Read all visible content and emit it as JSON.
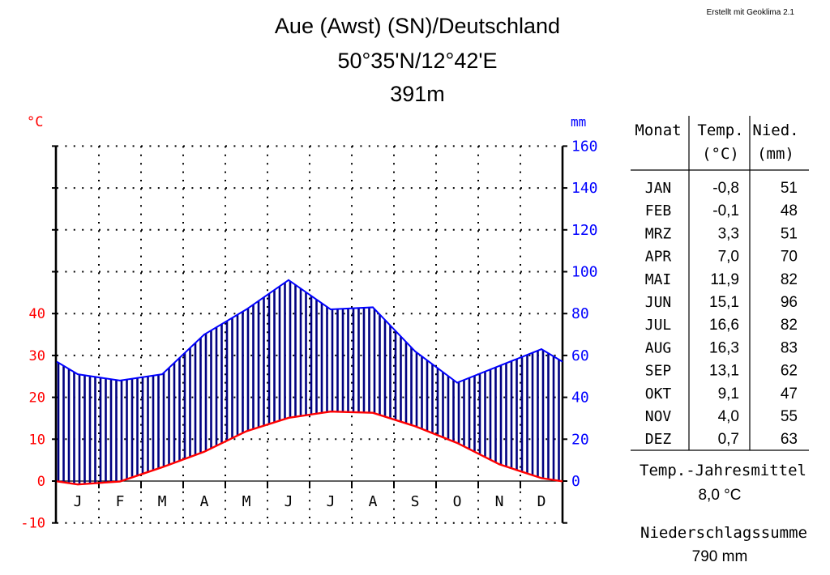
{
  "credit": "Erstellt mit Geoklima 2.1",
  "title_lines": [
    "Aue (Awst) (SN)/Deutschland",
    "50°35'N/12°42'E",
    "391m"
  ],
  "chart_data": {
    "type": "climate_diagram",
    "months": [
      "J",
      "F",
      "M",
      "A",
      "M",
      "J",
      "J",
      "A",
      "S",
      "O",
      "N",
      "D"
    ],
    "temperature": [
      -0.8,
      -0.1,
      3.3,
      7.0,
      11.9,
      15.1,
      16.6,
      16.3,
      13.1,
      9.1,
      4.0,
      0.7
    ],
    "precipitation": [
      51,
      48,
      51,
      70,
      82,
      96,
      82,
      83,
      62,
      47,
      55,
      63
    ],
    "left_axis": {
      "label": "°C",
      "ticks": [
        -10,
        0,
        10,
        20,
        30,
        40
      ],
      "range": [
        -10,
        80
      ]
    },
    "right_axis": {
      "label": "mm",
      "ticks": [
        0,
        20,
        40,
        60,
        80,
        100,
        120,
        140,
        160
      ],
      "range": [
        -20,
        160
      ]
    },
    "temp_color": "#ff0000",
    "precip_color": "#0000ff",
    "hatch_color": "#000080",
    "grid": "dotted"
  },
  "table": {
    "headers": [
      [
        "Monat",
        ""
      ],
      [
        "Temp.",
        "(°C)"
      ],
      [
        "Nied.",
        "(mm)"
      ]
    ],
    "rows": [
      [
        "JAN",
        "-0,8",
        "51"
      ],
      [
        "FEB",
        "-0,1",
        "48"
      ],
      [
        "MRZ",
        "3,3",
        "51"
      ],
      [
        "APR",
        "7,0",
        "70"
      ],
      [
        "MAI",
        "11,9",
        "82"
      ],
      [
        "JUN",
        "15,1",
        "96"
      ],
      [
        "JUL",
        "16,6",
        "82"
      ],
      [
        "AUG",
        "16,3",
        "83"
      ],
      [
        "SEP",
        "13,1",
        "62"
      ],
      [
        "OKT",
        "9,1",
        "47"
      ],
      [
        "NOV",
        "4,0",
        "55"
      ],
      [
        "DEZ",
        "0,7",
        "63"
      ]
    ]
  },
  "summary": {
    "temp_label": "Temp.-Jahresmittel",
    "temp_value": "8,0 °C",
    "precip_label": "Niederschlagssumme",
    "precip_value": "790 mm"
  }
}
